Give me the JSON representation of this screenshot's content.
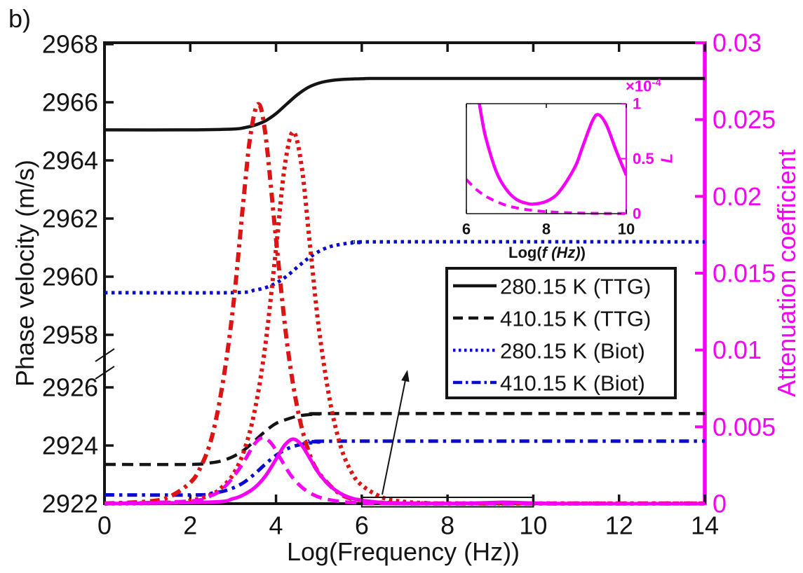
{
  "panel_label": "b)",
  "colors": {
    "black": "#141414",
    "red": "#dc1414",
    "blue": "#0b0bcf",
    "magenta": "#f500f5"
  },
  "axes": {
    "x": {
      "label": "Log(Frequency (Hz))",
      "min": 0,
      "max": 14,
      "ticks": [
        "0",
        "2",
        "4",
        "6",
        "8",
        "10",
        "12",
        "14"
      ],
      "tick_values": [
        0,
        2,
        4,
        6,
        8,
        10,
        12,
        14
      ]
    },
    "y_left": {
      "label": "Phase velocity (m/s)",
      "broken": true,
      "upper": {
        "min": 2958,
        "max": 2968,
        "ticks": [
          "2958",
          "2960",
          "2962",
          "2964",
          "2966",
          "2968"
        ],
        "tick_values": [
          2958,
          2960,
          2962,
          2964,
          2966,
          2968
        ]
      },
      "lower": {
        "min": 2922,
        "max": 2926,
        "ticks": [
          "2922",
          "2924",
          "2926"
        ],
        "tick_values": [
          2922,
          2924,
          2926
        ]
      }
    },
    "y_right": {
      "label": "Attenuation coefficient",
      "min": 0,
      "max": 0.03,
      "ticks": [
        "0",
        "0.005",
        "0.01",
        "0.015",
        "0.02",
        "0.025",
        "0.03"
      ],
      "tick_values": [
        0,
        0.005,
        0.01,
        0.015,
        0.02,
        0.025,
        0.03
      ]
    }
  },
  "legend": {
    "entries": [
      {
        "label": "280.15 K (TTG)",
        "color": "black",
        "dash": "solid"
      },
      {
        "label": "410.15 K (TTG)",
        "color": "black",
        "dash": "dash"
      },
      {
        "label": "280.15 K (Biot)",
        "color": "blue",
        "dash": "dot"
      },
      {
        "label": "410.15 K (Biot)",
        "color": "blue",
        "dash": "dashdot"
      }
    ]
  },
  "chart_data": {
    "type": "line",
    "title": "",
    "xlabel": "Log(Frequency (Hz))",
    "ylabel_left": "Phase velocity (m/s)",
    "ylabel_right": "Attenuation coefficient",
    "x_range": [
      0,
      14
    ],
    "y_left_break": [
      2926,
      2958
    ],
    "y_left_range": [
      2922,
      2968
    ],
    "y_right_range": [
      0,
      0.03
    ],
    "series": [
      {
        "name": "phase-velocity-280.15K-TTG",
        "axis": "left",
        "color": "black",
        "dash": "solid",
        "width": 4.5,
        "points": [
          [
            0,
            2965.05
          ],
          [
            2,
            2965.05
          ],
          [
            3,
            2965.08
          ],
          [
            3.25,
            2965.12
          ],
          [
            3.5,
            2965.21
          ],
          [
            3.75,
            2965.36
          ],
          [
            4,
            2965.61
          ],
          [
            4.25,
            2965.94
          ],
          [
            4.5,
            2966.26
          ],
          [
            4.75,
            2966.51
          ],
          [
            5,
            2966.66
          ],
          [
            5.25,
            2966.74
          ],
          [
            5.5,
            2966.78
          ],
          [
            6,
            2966.81
          ],
          [
            7,
            2966.82
          ],
          [
            14,
            2966.82
          ]
        ]
      },
      {
        "name": "phase-velocity-410.15K-TTG",
        "axis": "left",
        "color": "black",
        "dash": "dash",
        "width": 4.5,
        "points": [
          [
            0,
            2923.35
          ],
          [
            2,
            2923.35
          ],
          [
            2.5,
            2923.41
          ],
          [
            2.75,
            2923.48
          ],
          [
            3,
            2923.62
          ],
          [
            3.25,
            2923.84
          ],
          [
            3.5,
            2924.16
          ],
          [
            3.75,
            2924.49
          ],
          [
            4,
            2924.76
          ],
          [
            4.25,
            2924.9
          ],
          [
            4.5,
            2925.01
          ],
          [
            4.75,
            2925.06
          ],
          [
            5,
            2925.08
          ],
          [
            5.5,
            2925.1
          ],
          [
            14,
            2925.1
          ]
        ]
      },
      {
        "name": "phase-velocity-280.15K-Biot",
        "axis": "left",
        "color": "blue",
        "dash": "dot",
        "width": 5,
        "points": [
          [
            0,
            2959.45
          ],
          [
            3,
            2959.45
          ],
          [
            3.5,
            2959.54
          ],
          [
            3.75,
            2959.62
          ],
          [
            4,
            2959.78
          ],
          [
            4.25,
            2960.02
          ],
          [
            4.5,
            2960.33
          ],
          [
            4.75,
            2960.63
          ],
          [
            5,
            2960.87
          ],
          [
            5.25,
            2961.03
          ],
          [
            5.5,
            2961.11
          ],
          [
            5.75,
            2961.16
          ],
          [
            6,
            2961.18
          ],
          [
            6.5,
            2961.2
          ],
          [
            14,
            2961.2
          ]
        ]
      },
      {
        "name": "phase-velocity-410.15K-Biot",
        "axis": "left",
        "color": "blue",
        "dash": "dashdot",
        "width": 5,
        "points": [
          [
            0,
            2922.3
          ],
          [
            2.2,
            2922.3
          ],
          [
            2.5,
            2922.36
          ],
          [
            2.75,
            2922.42
          ],
          [
            3,
            2922.54
          ],
          [
            3.25,
            2922.73
          ],
          [
            3.5,
            2923.02
          ],
          [
            3.75,
            2923.36
          ],
          [
            4,
            2923.66
          ],
          [
            4.25,
            2923.88
          ],
          [
            4.5,
            2924.01
          ],
          [
            4.75,
            2924.08
          ],
          [
            5,
            2924.12
          ],
          [
            5.5,
            2924.15
          ],
          [
            14,
            2924.15
          ]
        ]
      },
      {
        "name": "attenuation-peak-red-dashdot",
        "axis": "right",
        "color": "red",
        "dash": "dashdot",
        "width": 6,
        "points": [
          [
            0,
            1e-05
          ],
          [
            1,
            0.00014
          ],
          [
            1.5,
            0.00043
          ],
          [
            2,
            0.00137
          ],
          [
            2.25,
            0.00243
          ],
          [
            2.5,
            0.0043
          ],
          [
            2.75,
            0.0077
          ],
          [
            3,
            0.0128
          ],
          [
            3.25,
            0.02
          ],
          [
            3.4,
            0.0239
          ],
          [
            3.58,
            0.026
          ],
          [
            3.75,
            0.0241
          ],
          [
            4,
            0.0172
          ],
          [
            4.25,
            0.0106
          ],
          [
            4.5,
            0.0062
          ],
          [
            4.75,
            0.0035
          ],
          [
            5,
            0.002
          ],
          [
            5.5,
            0.00062
          ],
          [
            6,
            0.0002
          ],
          [
            6.5,
            6e-05
          ],
          [
            7,
            2e-05
          ],
          [
            8,
            1e-05
          ],
          [
            14,
            1e-05
          ]
        ]
      },
      {
        "name": "attenuation-peak-red-dotted",
        "axis": "right",
        "color": "red",
        "dash": "dot",
        "width": 6,
        "points": [
          [
            0,
            5e-06
          ],
          [
            1.5,
            6e-05
          ],
          [
            2,
            0.00019
          ],
          [
            2.5,
            0.0006
          ],
          [
            2.75,
            0.0011
          ],
          [
            3,
            0.0019
          ],
          [
            3.25,
            0.0034
          ],
          [
            3.5,
            0.006
          ],
          [
            3.75,
            0.0103
          ],
          [
            4,
            0.0166
          ],
          [
            4.2,
            0.0219
          ],
          [
            4.4,
            0.0242
          ],
          [
            4.6,
            0.0219
          ],
          [
            4.8,
            0.0166
          ],
          [
            5,
            0.0114
          ],
          [
            5.25,
            0.0068
          ],
          [
            5.5,
            0.0038
          ],
          [
            5.75,
            0.0021
          ],
          [
            6,
            0.0012
          ],
          [
            6.5,
            0.00038
          ],
          [
            7,
            0.00012
          ],
          [
            7.5,
            4e-05
          ],
          [
            8,
            2e-05
          ],
          [
            14,
            1e-05
          ]
        ]
      },
      {
        "name": "attenuation-magenta-solid",
        "axis": "right",
        "color": "magenta",
        "dash": "solid",
        "width": 5,
        "points": [
          [
            0,
            2e-06
          ],
          [
            2.5,
            0.0001
          ],
          [
            3,
            0.00033
          ],
          [
            3.25,
            0.00059
          ],
          [
            3.5,
            0.00104
          ],
          [
            3.75,
            0.00179
          ],
          [
            4,
            0.00289
          ],
          [
            4.2,
            0.0038
          ],
          [
            4.4,
            0.0042
          ],
          [
            4.6,
            0.0038
          ],
          [
            4.8,
            0.00289
          ],
          [
            5,
            0.00198
          ],
          [
            5.25,
            0.00118
          ],
          [
            5.5,
            0.00067
          ],
          [
            5.75,
            0.00037
          ],
          [
            6,
            0.00021
          ],
          [
            6.5,
            7e-05
          ],
          [
            7,
            2.2e-05
          ],
          [
            7.7,
            8.7e-06
          ],
          [
            8,
            1.1e-05
          ],
          [
            8.5,
            2.9e-05
          ],
          [
            9,
            7e-05
          ],
          [
            9.3,
            9e-05
          ],
          [
            9.6,
            7.2e-05
          ],
          [
            10,
            3.5e-05
          ],
          [
            10.5,
            1.1e-05
          ],
          [
            11,
            4e-06
          ],
          [
            12,
            1e-06
          ],
          [
            14,
            1e-06
          ]
        ]
      },
      {
        "name": "attenuation-magenta-dashed",
        "axis": "right",
        "color": "magenta",
        "dash": "dash",
        "width": 5,
        "points": [
          [
            0,
            2e-06
          ],
          [
            2,
            0.00017
          ],
          [
            2.5,
            0.00054
          ],
          [
            2.75,
            0.00096
          ],
          [
            3,
            0.00172
          ],
          [
            3.25,
            0.00272
          ],
          [
            3.5,
            0.00389
          ],
          [
            3.7,
            0.0043
          ],
          [
            3.9,
            0.00389
          ],
          [
            4.1,
            0.00296
          ],
          [
            4.35,
            0.00183
          ],
          [
            4.6,
            0.00107
          ],
          [
            4.85,
            0.00061
          ],
          [
            5.1,
            0.00034
          ],
          [
            5.5,
            0.00014
          ],
          [
            6,
            4e-05
          ],
          [
            6.5,
            1.3e-05
          ],
          [
            7,
            4e-06
          ],
          [
            8,
            1e-06
          ],
          [
            14,
            1e-06
          ]
        ]
      }
    ]
  },
  "inset": {
    "x_label_prefix": "Log(",
    "x_label_italic": "f (Hz)",
    "x_label_suffix": ")",
    "y_label": "L",
    "scale_times": "×10",
    "scale_exp": "-4",
    "x_range": [
      6,
      10
    ],
    "y_range_e4": [
      0,
      1
    ],
    "x_ticks": [
      "6",
      "8",
      "10"
    ],
    "x_tick_values": [
      6,
      8,
      10
    ],
    "y_ticks": [
      "0",
      "0.5",
      "1"
    ],
    "y_tick_values": [
      0,
      0.5,
      1
    ],
    "series": [
      {
        "name": "inset-attenuation-solid",
        "color": "magenta",
        "dash": "solid",
        "width": 4.5,
        "points_e4": [
          [
            6,
            2.1
          ],
          [
            6.1,
            1.68
          ],
          [
            6.2,
            1.33
          ],
          [
            6.3,
            1.06
          ],
          [
            6.4,
            0.84
          ],
          [
            6.5,
            0.67
          ],
          [
            6.75,
            0.38
          ],
          [
            7,
            0.22
          ],
          [
            7.25,
            0.13
          ],
          [
            7.5,
            0.095
          ],
          [
            7.7,
            0.087
          ],
          [
            8,
            0.112
          ],
          [
            8.25,
            0.17
          ],
          [
            8.5,
            0.29
          ],
          [
            8.75,
            0.45
          ],
          [
            8.9,
            0.6
          ],
          [
            9.15,
            0.84
          ],
          [
            9.3,
            0.9
          ],
          [
            9.5,
            0.81
          ],
          [
            9.75,
            0.57
          ],
          [
            10,
            0.35
          ]
        ]
      },
      {
        "name": "inset-attenuation-dashed",
        "color": "magenta",
        "dash": "dash",
        "width": 4,
        "points_e4": [
          [
            6,
            0.31
          ],
          [
            6.25,
            0.22
          ],
          [
            6.5,
            0.155
          ],
          [
            6.75,
            0.11
          ],
          [
            7,
            0.075
          ],
          [
            7.25,
            0.053
          ],
          [
            7.5,
            0.037
          ],
          [
            7.75,
            0.026
          ],
          [
            8,
            0.018
          ],
          [
            8.5,
            0.009
          ],
          [
            9,
            0.004
          ],
          [
            9.5,
            0.002
          ],
          [
            10,
            0.001
          ]
        ]
      }
    ]
  },
  "annotations": {
    "zoom_box": {
      "x_range": [
        6,
        10
      ],
      "meaning": "region magnified in inset"
    }
  }
}
